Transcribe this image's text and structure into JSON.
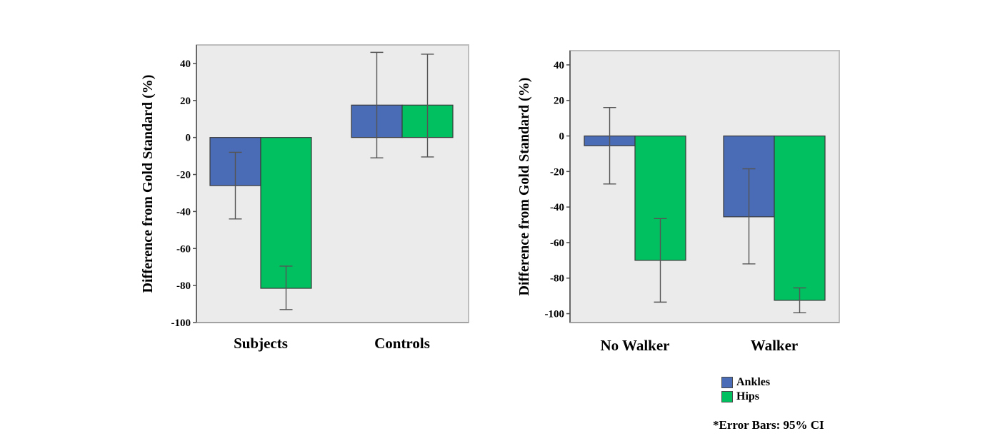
{
  "chart_data": [
    {
      "type": "bar",
      "ylabel": "Difference from Gold Standard (%)",
      "xlabel": "",
      "ylim": [
        -100,
        50
      ],
      "yticks": [
        40,
        20,
        0,
        -20,
        -40,
        -60,
        -80,
        -100
      ],
      "categories": [
        "Subjects",
        "Controls"
      ],
      "series": [
        {
          "name": "Ankles",
          "values": [
            -26,
            17.5
          ],
          "ci_low": [
            -44,
            -11
          ],
          "ci_high": [
            -8,
            46
          ]
        },
        {
          "name": "Hips",
          "values": [
            -81.5,
            17.5
          ],
          "ci_low": [
            -93,
            -10.5
          ],
          "ci_high": [
            -69.5,
            45
          ]
        }
      ]
    },
    {
      "type": "bar",
      "ylabel": "Difference from Gold Standard (%)",
      "xlabel": "",
      "ylim": [
        -105,
        48
      ],
      "yticks": [
        40,
        20,
        0,
        -20,
        -40,
        -60,
        -80,
        -100
      ],
      "categories": [
        "No Walker",
        "Walker"
      ],
      "series": [
        {
          "name": "Ankles",
          "values": [
            -5.5,
            -45.5
          ],
          "ci_low": [
            -27,
            -72
          ],
          "ci_high": [
            16,
            -18.5
          ]
        },
        {
          "name": "Hips",
          "values": [
            -70,
            -92.5
          ],
          "ci_low": [
            -93.5,
            -99.5
          ],
          "ci_high": [
            -46.5,
            -85.5
          ]
        }
      ]
    }
  ],
  "legend": {
    "items": [
      {
        "label": "Ankles",
        "color": "#4a6bb5"
      },
      {
        "label": "Hips",
        "color": "#00c060"
      }
    ]
  },
  "note": "*Error Bars: 95% CI"
}
